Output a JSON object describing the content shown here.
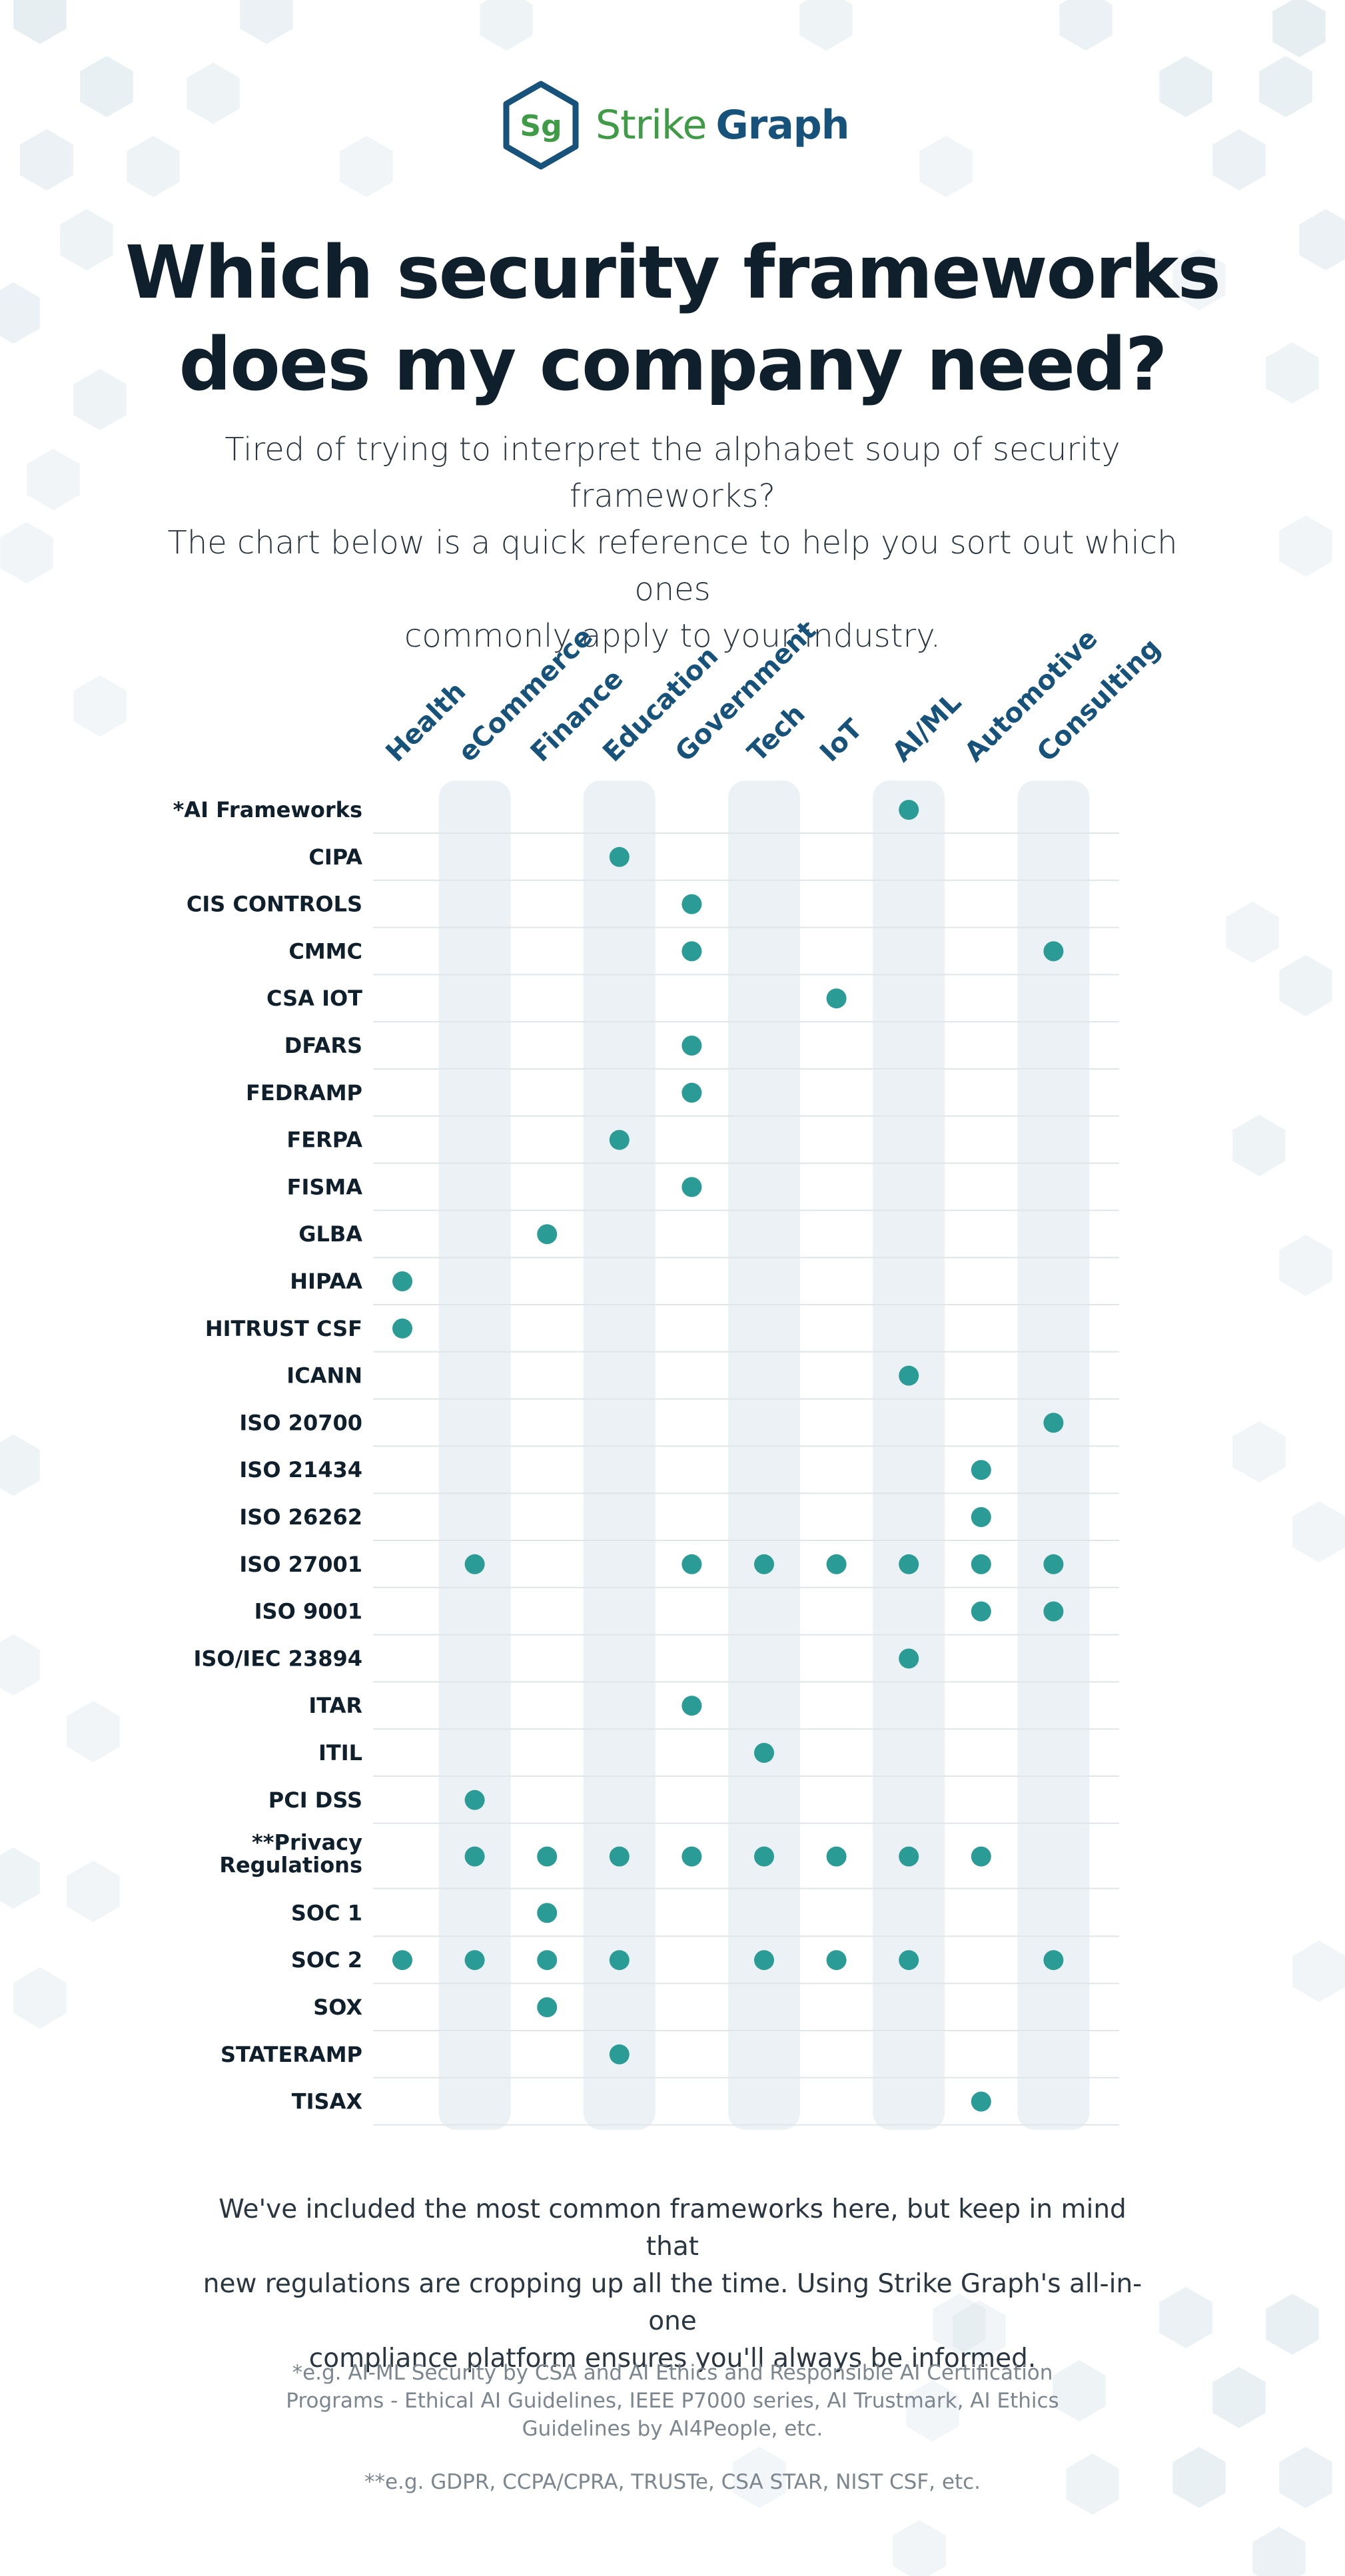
{
  "brand": {
    "logo_initials": "Sg",
    "name_part1": "Strike",
    "name_part2": "Graph"
  },
  "title_line1": "Which security frameworks",
  "title_line2": "does my company need?",
  "subtitle_line1": "Tired of trying to interpret the alphabet soup of security frameworks?",
  "subtitle_line2": "The chart below is a quick reference to help you sort out which ones",
  "subtitle_line3": "commonly apply to your industry.",
  "footer_line1": "We've included the most common frameworks here, but keep in mind that",
  "footer_line2": "new regulations are cropping up all the time. Using Strike Graph's all-in-one",
  "footer_line3": "compliance platform ensures you'll always be informed.",
  "note1_line1": "*e.g. AI-ML Security by CSA and AI Ethics and Responsible AI Certification",
  "note1_line2": "Programs - Ethical AI Guidelines, IEEE P7000 series, AI Trustmark, AI Ethics",
  "note1_line3": "Guidelines by AI4People, etc.",
  "note2": "**e.g. GDPR, CCPA/CPRA, TRUSTe, CSA STAR, NIST CSF, etc.",
  "colors": {
    "dot": "#2a9c95",
    "header_text": "#16527a",
    "row_text": "#0f1f2c",
    "column_band": "#e8eef2",
    "brand_green": "#3f9b45",
    "brand_blue": "#16527a"
  },
  "chart_data": {
    "type": "table",
    "columns": [
      "Health",
      "eCommerce",
      "Finance",
      "Education",
      "Government",
      "Tech",
      "IoT",
      "AI/ML",
      "Automotive",
      "Consulting"
    ],
    "rows": [
      {
        "label": "*AI Frameworks",
        "applies": [
          0,
          0,
          0,
          0,
          0,
          0,
          0,
          1,
          0,
          0
        ]
      },
      {
        "label": "CIPA",
        "applies": [
          0,
          0,
          0,
          1,
          0,
          0,
          0,
          0,
          0,
          0
        ]
      },
      {
        "label": "CIS CONTROLS",
        "applies": [
          0,
          0,
          0,
          0,
          1,
          0,
          0,
          0,
          0,
          0
        ]
      },
      {
        "label": "CMMC",
        "applies": [
          0,
          0,
          0,
          0,
          1,
          0,
          0,
          0,
          0,
          1
        ]
      },
      {
        "label": "CSA IOT",
        "applies": [
          0,
          0,
          0,
          0,
          0,
          0,
          1,
          0,
          0,
          0
        ]
      },
      {
        "label": "DFARS",
        "applies": [
          0,
          0,
          0,
          0,
          1,
          0,
          0,
          0,
          0,
          0
        ]
      },
      {
        "label": "FEDRAMP",
        "applies": [
          0,
          0,
          0,
          0,
          1,
          0,
          0,
          0,
          0,
          0
        ]
      },
      {
        "label": "FERPA",
        "applies": [
          0,
          0,
          0,
          1,
          0,
          0,
          0,
          0,
          0,
          0
        ]
      },
      {
        "label": "FISMA",
        "applies": [
          0,
          0,
          0,
          0,
          1,
          0,
          0,
          0,
          0,
          0
        ]
      },
      {
        "label": "GLBA",
        "applies": [
          0,
          0,
          1,
          0,
          0,
          0,
          0,
          0,
          0,
          0
        ]
      },
      {
        "label": "HIPAA",
        "applies": [
          1,
          0,
          0,
          0,
          0,
          0,
          0,
          0,
          0,
          0
        ]
      },
      {
        "label": "HITRUST CSF",
        "applies": [
          1,
          0,
          0,
          0,
          0,
          0,
          0,
          0,
          0,
          0
        ]
      },
      {
        "label": "ICANN",
        "applies": [
          0,
          0,
          0,
          0,
          0,
          0,
          0,
          1,
          0,
          0
        ]
      },
      {
        "label": "ISO 20700",
        "applies": [
          0,
          0,
          0,
          0,
          0,
          0,
          0,
          0,
          0,
          1
        ]
      },
      {
        "label": "ISO 21434",
        "applies": [
          0,
          0,
          0,
          0,
          0,
          0,
          0,
          0,
          1,
          0
        ]
      },
      {
        "label": "ISO 26262",
        "applies": [
          0,
          0,
          0,
          0,
          0,
          0,
          0,
          0,
          1,
          0
        ]
      },
      {
        "label": "ISO 27001",
        "applies": [
          0,
          1,
          0,
          0,
          1,
          1,
          1,
          1,
          1,
          1
        ]
      },
      {
        "label": "ISO 9001",
        "applies": [
          0,
          0,
          0,
          0,
          0,
          0,
          0,
          0,
          1,
          1
        ]
      },
      {
        "label": "ISO/IEC 23894",
        "applies": [
          0,
          0,
          0,
          0,
          0,
          0,
          0,
          1,
          0,
          0
        ]
      },
      {
        "label": "ITAR",
        "applies": [
          0,
          0,
          0,
          0,
          1,
          0,
          0,
          0,
          0,
          0
        ]
      },
      {
        "label": "ITIL",
        "applies": [
          0,
          0,
          0,
          0,
          0,
          1,
          0,
          0,
          0,
          0
        ]
      },
      {
        "label": "PCI DSS",
        "applies": [
          0,
          1,
          0,
          0,
          0,
          0,
          0,
          0,
          0,
          0
        ]
      },
      {
        "label": [
          "**Privacy",
          "Regulations"
        ],
        "applies": [
          0,
          1,
          1,
          1,
          1,
          1,
          1,
          1,
          1,
          0
        ]
      },
      {
        "label": "SOC 1",
        "applies": [
          0,
          0,
          1,
          0,
          0,
          0,
          0,
          0,
          0,
          0
        ]
      },
      {
        "label": "SOC 2",
        "applies": [
          1,
          1,
          1,
          1,
          0,
          1,
          1,
          1,
          0,
          1
        ]
      },
      {
        "label": "SOX",
        "applies": [
          0,
          0,
          1,
          0,
          0,
          0,
          0,
          0,
          0,
          0
        ]
      },
      {
        "label": "STATERAMP",
        "applies": [
          0,
          0,
          0,
          1,
          0,
          0,
          0,
          0,
          0,
          0
        ]
      },
      {
        "label": "TISAX",
        "applies": [
          0,
          0,
          0,
          0,
          0,
          0,
          0,
          0,
          1,
          0
        ]
      }
    ]
  }
}
